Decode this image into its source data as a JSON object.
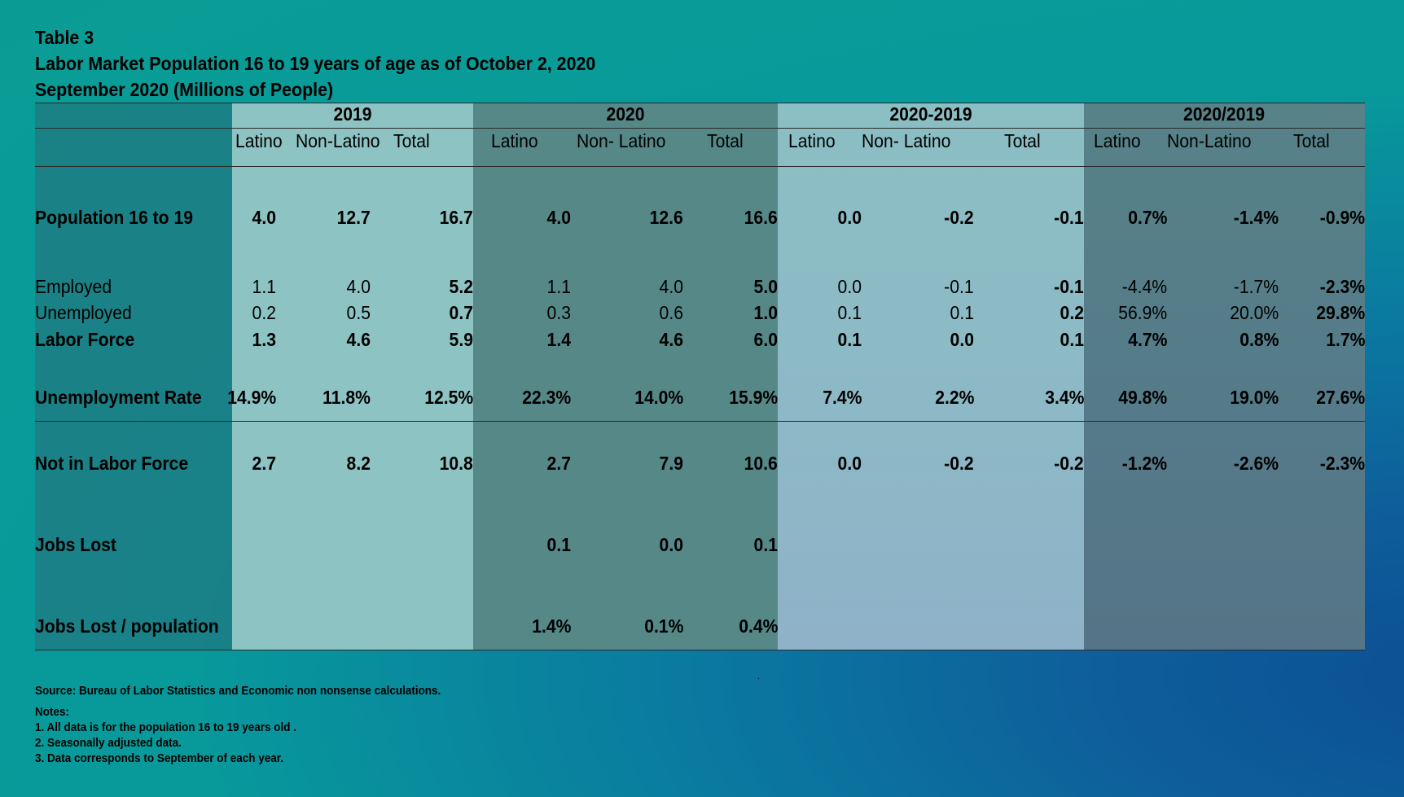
{
  "titles": {
    "line1": "Table 3",
    "line2": "Labor Market Population 16 to 19 years of age as of October 2, 2020",
    "line3": "September 2020 (Millions of People)"
  },
  "groups": [
    "2019",
    "2020",
    "2020-2019",
    "2020/2019"
  ],
  "subheaders": [
    [
      "Latino",
      "Non-Latino",
      "Total"
    ],
    [
      "Latino",
      "Non- Latino",
      "Total"
    ],
    [
      "Latino",
      "Non- Latino",
      "Total"
    ],
    [
      "Latino",
      "Non-Latino",
      "Total"
    ]
  ],
  "rows": [
    {
      "label": "Population 16  to 19",
      "bold": true,
      "values": [
        "4.0",
        "12.7",
        "16.7",
        "4.0",
        "12.6",
        "16.6",
        "0.0",
        "-0.2",
        "-0.1",
        "0.7%",
        "-1.4%",
        "-0.9%"
      ]
    },
    {
      "label": " Employed",
      "bold": false,
      "values": [
        "1.1",
        "4.0",
        "5.2",
        "1.1",
        "4.0",
        "5.0",
        "0.0",
        "-0.1",
        "-0.1",
        "-4.4%",
        "-1.7%",
        "-2.3%"
      ]
    },
    {
      "label": " Unemployed",
      "bold": false,
      "values": [
        "0.2",
        "0.5",
        "0.7",
        "0.3",
        "0.6",
        "1.0",
        "0.1",
        "0.1",
        "0.2",
        "56.9%",
        "20.0%",
        "29.8%"
      ]
    },
    {
      "label": "Labor Force",
      "bold": true,
      "values": [
        "1.3",
        "4.6",
        "5.9",
        "1.4",
        "4.6",
        "6.0",
        "0.1",
        "0.0",
        "0.1",
        "4.7%",
        "0.8%",
        "1.7%"
      ]
    },
    {
      "label": "Unemployment Rate",
      "bold": true,
      "values": [
        "14.9%",
        "11.8%",
        "12.5%",
        "22.3%",
        "14.0%",
        "15.9%",
        "7.4%",
        "2.2%",
        "3.4%",
        "49.8%",
        "19.0%",
        "27.6%"
      ]
    },
    {
      "label": "Not in Labor Force",
      "bold": true,
      "values": [
        "2.7",
        "8.2",
        "10.8",
        "2.7",
        "7.9",
        "10.6",
        "0.0",
        "-0.2",
        "-0.2",
        "-1.2%",
        "-2.6%",
        "-2.3%"
      ]
    },
    {
      "label": "Jobs Lost",
      "bold": true,
      "values": [
        "",
        "",
        "",
        "0.1",
        "0.0",
        "0.1",
        "",
        "",
        "",
        "",
        "",
        ""
      ]
    },
    {
      "label": "Jobs Lost / population",
      "bold": true,
      "values": [
        "",
        "",
        "",
        "1.4%",
        "0.1%",
        "0.4%",
        "",
        "",
        "",
        "",
        "",
        ""
      ]
    }
  ],
  "footer": {
    "source": "Source: Bureau of Labor Statistics and Economic non nonsense calculations.",
    "notes_title": "Notes:",
    "notes": [
      "1. All data is for the population 16 to 19 years old .",
      "2. Seasonally adjusted data.",
      "3. Data corresponds to September of each year."
    ],
    "dot": "."
  }
}
